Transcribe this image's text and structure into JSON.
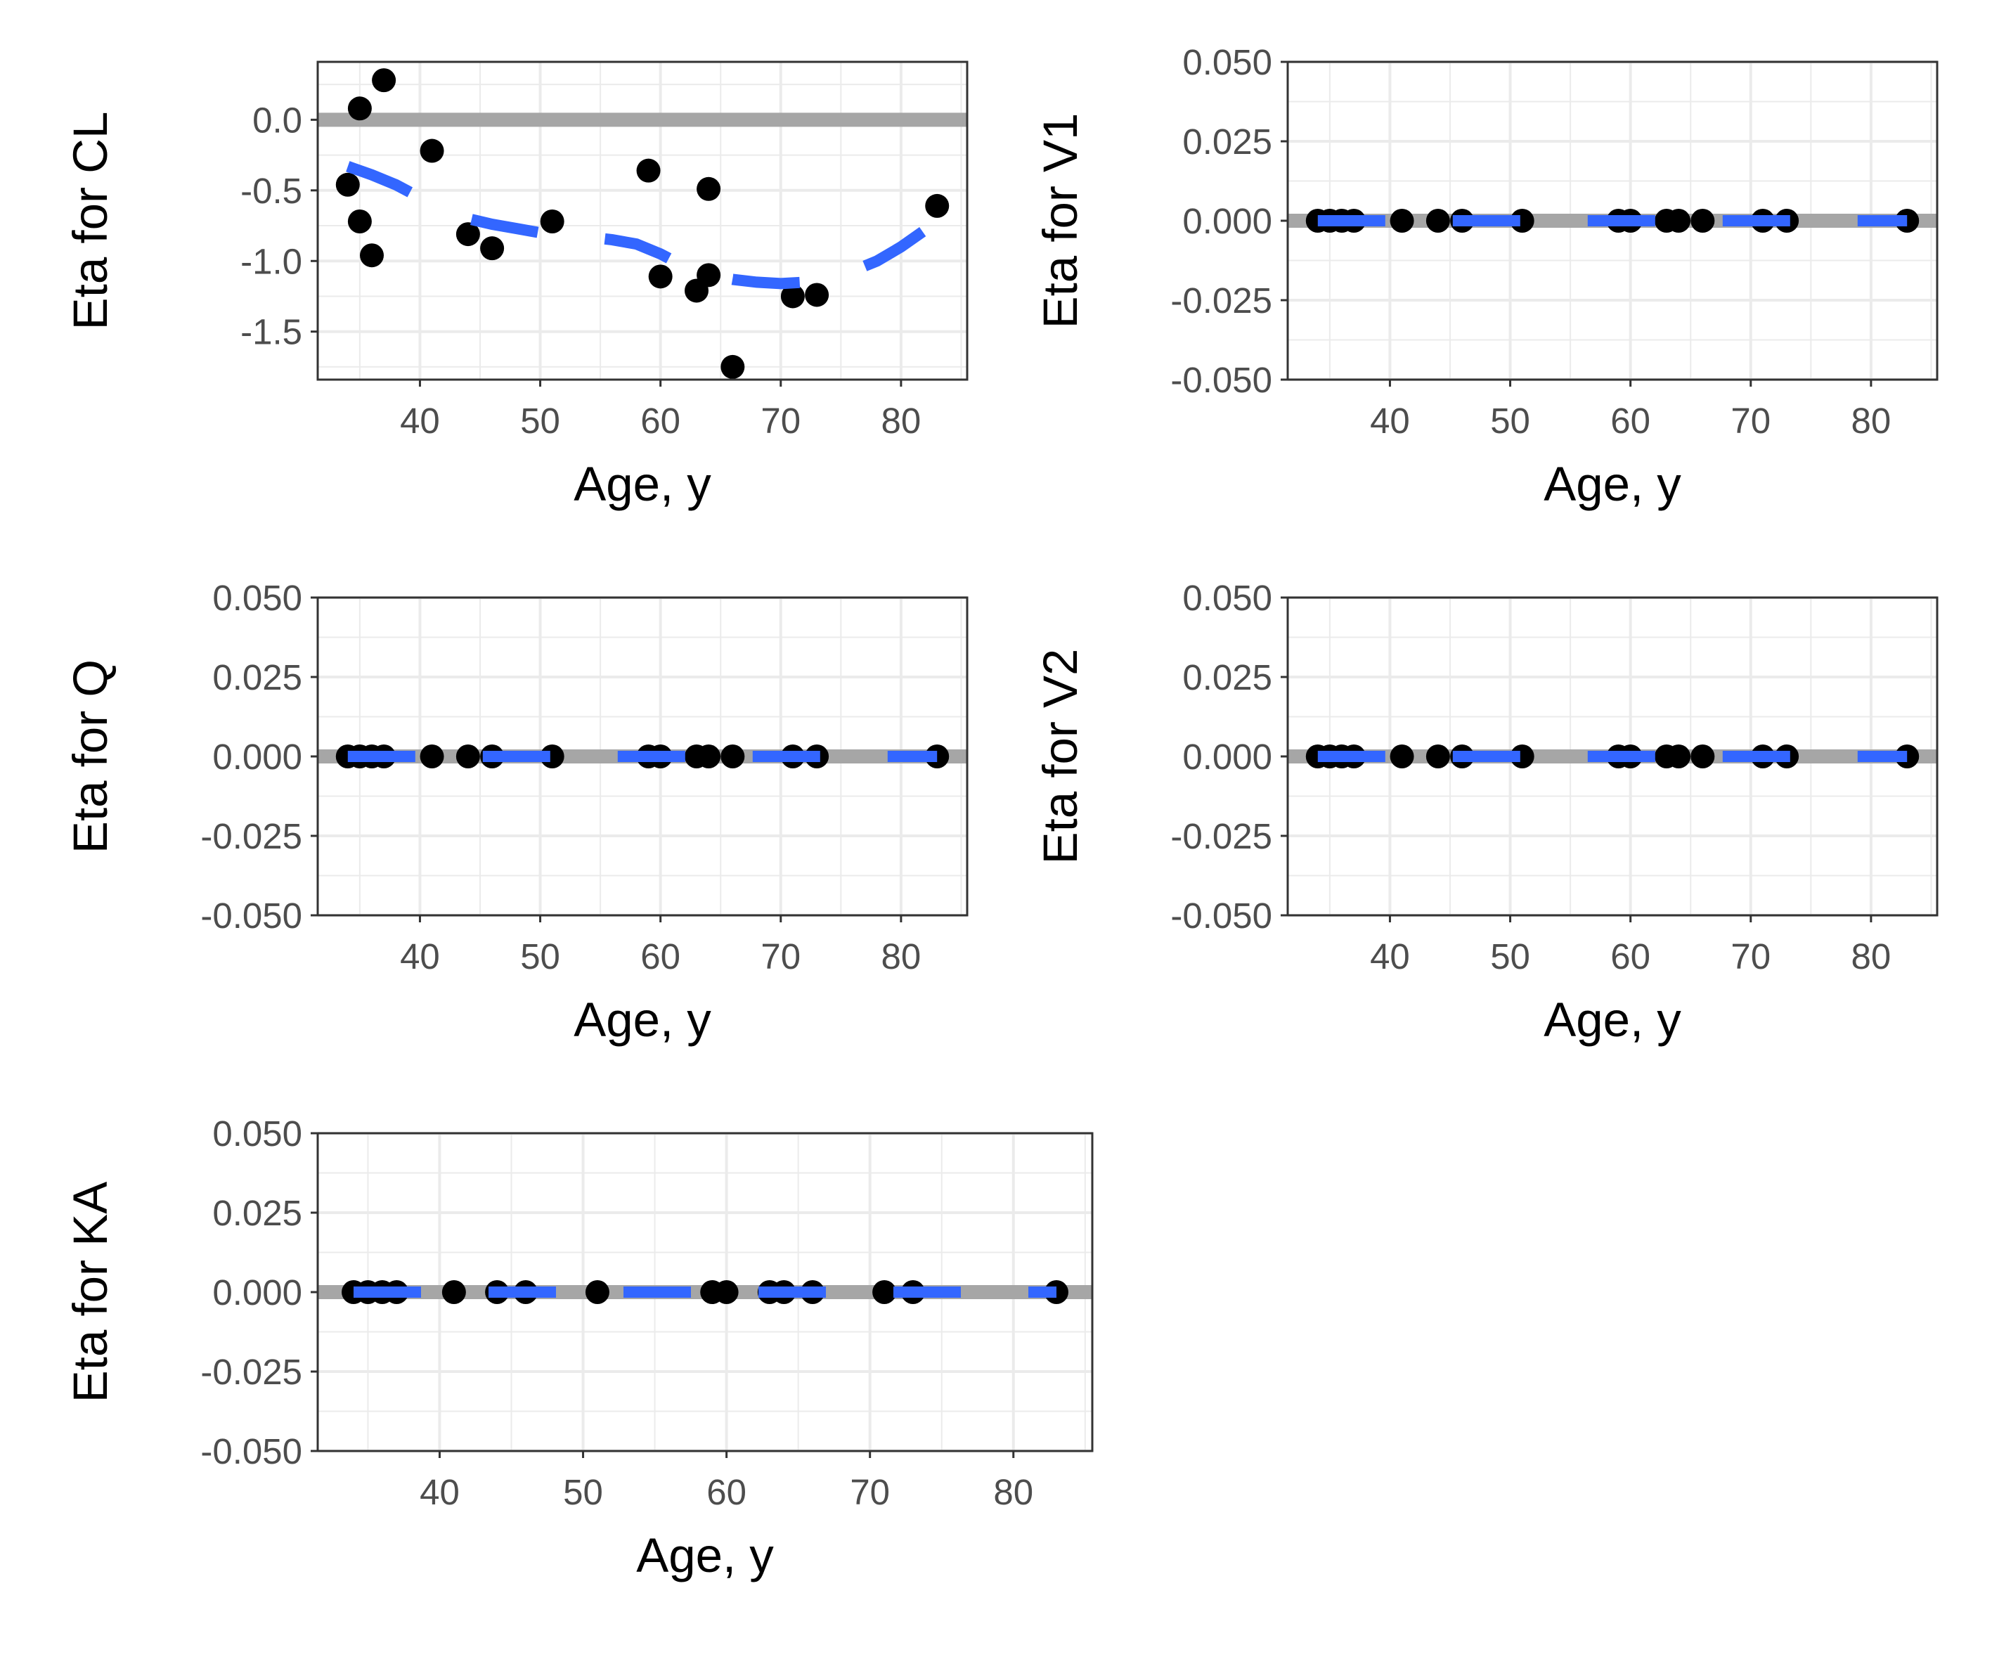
{
  "chart_data": [
    {
      "type": "scatter",
      "panel": "top-left",
      "xlabel": "Age, y",
      "ylabel": "Eta for CL",
      "xlim": [
        31.5,
        85.5
      ],
      "ylim": [
        -1.84,
        0.41
      ],
      "xticks": [
        40,
        50,
        60,
        70,
        80
      ],
      "xtick_labels": [
        "40",
        "50",
        "60",
        "70",
        "80"
      ],
      "yticks": [
        0.0,
        -0.5,
        -1.0,
        -1.5
      ],
      "ytick_labels": [
        "0.0",
        "-0.5",
        "-1.0",
        "-1.5"
      ],
      "reference_line_y": 0,
      "points": [
        {
          "x": 34,
          "y": -0.46
        },
        {
          "x": 35,
          "y": 0.08
        },
        {
          "x": 35,
          "y": -0.72
        },
        {
          "x": 36,
          "y": -0.96
        },
        {
          "x": 37,
          "y": 0.28
        },
        {
          "x": 41,
          "y": -0.22
        },
        {
          "x": 44,
          "y": -0.81
        },
        {
          "x": 46,
          "y": -0.91
        },
        {
          "x": 51,
          "y": -0.72
        },
        {
          "x": 59,
          "y": -0.36
        },
        {
          "x": 60,
          "y": -1.11
        },
        {
          "x": 63,
          "y": -1.21
        },
        {
          "x": 64,
          "y": -0.49
        },
        {
          "x": 64,
          "y": -1.1
        },
        {
          "x": 66,
          "y": -1.75
        },
        {
          "x": 71,
          "y": -1.25
        },
        {
          "x": 73,
          "y": -1.24
        },
        {
          "x": 83,
          "y": -0.61
        }
      ],
      "smooth": {
        "x": [
          34,
          36,
          38,
          40,
          42,
          44,
          46,
          48,
          50,
          52,
          54,
          56,
          58,
          60,
          62,
          64,
          66,
          68,
          70,
          72,
          74,
          76,
          78,
          80,
          82,
          83
        ],
        "y": [
          -0.33,
          -0.39,
          -0.46,
          -0.55,
          -0.64,
          -0.7,
          -0.74,
          -0.77,
          -0.8,
          -0.82,
          -0.83,
          -0.85,
          -0.88,
          -0.95,
          -1.04,
          -1.1,
          -1.13,
          -1.15,
          -1.16,
          -1.15,
          -1.12,
          -1.07,
          -1.0,
          -0.9,
          -0.78,
          -0.73
        ]
      },
      "grid": true,
      "colors": {
        "points": "#000000",
        "smooth": "#3366ff",
        "reference": "#a6a6a6",
        "grid": "#ebebeb"
      }
    },
    {
      "type": "scatter",
      "panel": "top-right",
      "xlabel": "Age, y",
      "ylabel": "Eta for V1",
      "xlim": [
        31.5,
        85.5
      ],
      "ylim": [
        -0.05,
        0.05
      ],
      "xticks": [
        40,
        50,
        60,
        70,
        80
      ],
      "xtick_labels": [
        "40",
        "50",
        "60",
        "70",
        "80"
      ],
      "yticks": [
        0.05,
        0.025,
        0.0,
        -0.025,
        -0.05
      ],
      "ytick_labels": [
        "0.050",
        "0.025",
        "0.000",
        "-0.025",
        "-0.050"
      ],
      "reference_line_y": 0,
      "points": [
        {
          "x": 34,
          "y": 0
        },
        {
          "x": 35,
          "y": 0
        },
        {
          "x": 36,
          "y": 0
        },
        {
          "x": 37,
          "y": 0
        },
        {
          "x": 41,
          "y": 0
        },
        {
          "x": 44,
          "y": 0
        },
        {
          "x": 46,
          "y": 0
        },
        {
          "x": 51,
          "y": 0
        },
        {
          "x": 59,
          "y": 0
        },
        {
          "x": 60,
          "y": 0
        },
        {
          "x": 63,
          "y": 0
        },
        {
          "x": 64,
          "y": 0
        },
        {
          "x": 66,
          "y": 0
        },
        {
          "x": 71,
          "y": 0
        },
        {
          "x": 73,
          "y": 0
        },
        {
          "x": 83,
          "y": 0
        }
      ],
      "smooth": {
        "x": [
          34,
          83
        ],
        "y": [
          0,
          0
        ]
      },
      "grid": true,
      "colors": {
        "points": "#000000",
        "smooth": "#3366ff",
        "reference": "#a6a6a6",
        "grid": "#ebebeb"
      }
    },
    {
      "type": "scatter",
      "panel": "middle-left",
      "xlabel": "Age, y",
      "ylabel": "Eta for Q",
      "xlim": [
        31.5,
        85.5
      ],
      "ylim": [
        -0.05,
        0.05
      ],
      "xticks": [
        40,
        50,
        60,
        70,
        80
      ],
      "xtick_labels": [
        "40",
        "50",
        "60",
        "70",
        "80"
      ],
      "yticks": [
        0.05,
        0.025,
        0.0,
        -0.025,
        -0.05
      ],
      "ytick_labels": [
        "0.050",
        "0.025",
        "0.000",
        "-0.025",
        "-0.050"
      ],
      "reference_line_y": 0,
      "points": [
        {
          "x": 34,
          "y": 0
        },
        {
          "x": 35,
          "y": 0
        },
        {
          "x": 36,
          "y": 0
        },
        {
          "x": 37,
          "y": 0
        },
        {
          "x": 41,
          "y": 0
        },
        {
          "x": 44,
          "y": 0
        },
        {
          "x": 46,
          "y": 0
        },
        {
          "x": 51,
          "y": 0
        },
        {
          "x": 59,
          "y": 0
        },
        {
          "x": 60,
          "y": 0
        },
        {
          "x": 63,
          "y": 0
        },
        {
          "x": 64,
          "y": 0
        },
        {
          "x": 66,
          "y": 0
        },
        {
          "x": 71,
          "y": 0
        },
        {
          "x": 73,
          "y": 0
        },
        {
          "x": 83,
          "y": 0
        }
      ],
      "smooth": {
        "x": [
          34,
          83
        ],
        "y": [
          0,
          0
        ]
      },
      "grid": true,
      "colors": {
        "points": "#000000",
        "smooth": "#3366ff",
        "reference": "#a6a6a6",
        "grid": "#ebebeb"
      }
    },
    {
      "type": "scatter",
      "panel": "middle-right",
      "xlabel": "Age, y",
      "ylabel": "Eta for V2",
      "xlim": [
        31.5,
        85.5
      ],
      "ylim": [
        -0.05,
        0.05
      ],
      "xticks": [
        40,
        50,
        60,
        70,
        80
      ],
      "xtick_labels": [
        "40",
        "50",
        "60",
        "70",
        "80"
      ],
      "yticks": [
        0.05,
        0.025,
        0.0,
        -0.025,
        -0.05
      ],
      "ytick_labels": [
        "0.050",
        "0.025",
        "0.000",
        "-0.025",
        "-0.050"
      ],
      "reference_line_y": 0,
      "points": [
        {
          "x": 34,
          "y": 0
        },
        {
          "x": 35,
          "y": 0
        },
        {
          "x": 36,
          "y": 0
        },
        {
          "x": 37,
          "y": 0
        },
        {
          "x": 41,
          "y": 0
        },
        {
          "x": 44,
          "y": 0
        },
        {
          "x": 46,
          "y": 0
        },
        {
          "x": 51,
          "y": 0
        },
        {
          "x": 59,
          "y": 0
        },
        {
          "x": 60,
          "y": 0
        },
        {
          "x": 63,
          "y": 0
        },
        {
          "x": 64,
          "y": 0
        },
        {
          "x": 66,
          "y": 0
        },
        {
          "x": 71,
          "y": 0
        },
        {
          "x": 73,
          "y": 0
        },
        {
          "x": 83,
          "y": 0
        }
      ],
      "smooth": {
        "x": [
          34,
          83
        ],
        "y": [
          0,
          0
        ]
      },
      "grid": true,
      "colors": {
        "points": "#000000",
        "smooth": "#3366ff",
        "reference": "#a6a6a6",
        "grid": "#ebebeb"
      }
    },
    {
      "type": "scatter",
      "panel": "bottom-left",
      "xlabel": "Age, y",
      "ylabel": "Eta for KA",
      "xlim": [
        31.5,
        85.5
      ],
      "ylim": [
        -0.05,
        0.05
      ],
      "xticks": [
        40,
        50,
        60,
        70,
        80
      ],
      "xtick_labels": [
        "40",
        "50",
        "60",
        "70",
        "80"
      ],
      "yticks": [
        0.05,
        0.025,
        0.0,
        -0.025,
        -0.05
      ],
      "ytick_labels": [
        "0.050",
        "0.025",
        "0.000",
        "-0.025",
        "-0.050"
      ],
      "reference_line_y": 0,
      "points": [
        {
          "x": 34,
          "y": 0
        },
        {
          "x": 35,
          "y": 0
        },
        {
          "x": 36,
          "y": 0
        },
        {
          "x": 37,
          "y": 0
        },
        {
          "x": 41,
          "y": 0
        },
        {
          "x": 44,
          "y": 0
        },
        {
          "x": 46,
          "y": 0
        },
        {
          "x": 51,
          "y": 0
        },
        {
          "x": 59,
          "y": 0
        },
        {
          "x": 60,
          "y": 0
        },
        {
          "x": 63,
          "y": 0
        },
        {
          "x": 64,
          "y": 0
        },
        {
          "x": 66,
          "y": 0
        },
        {
          "x": 71,
          "y": 0
        },
        {
          "x": 73,
          "y": 0
        },
        {
          "x": 83,
          "y": 0
        }
      ],
      "smooth": {
        "x": [
          34,
          83
        ],
        "y": [
          0,
          0
        ]
      },
      "grid": true,
      "colors": {
        "points": "#000000",
        "smooth": "#3366ff",
        "reference": "#a6a6a6",
        "grid": "#ebebeb"
      }
    }
  ]
}
